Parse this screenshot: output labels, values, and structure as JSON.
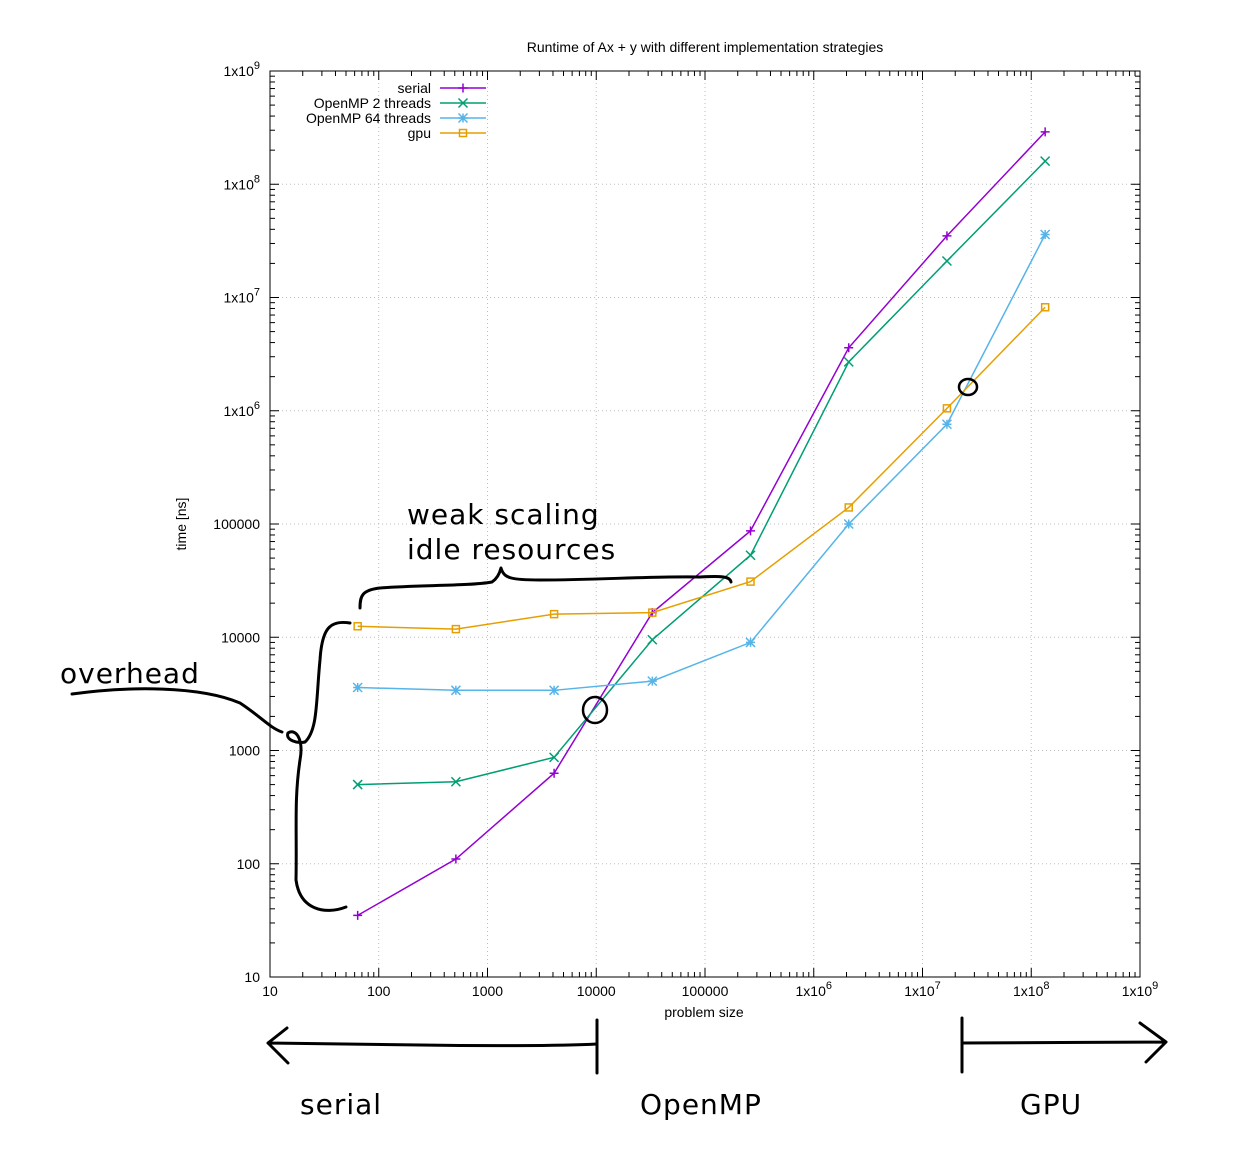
{
  "chart_data": {
    "type": "line",
    "title": "Runtime of Ax + y with different implementation strategies",
    "xlabel": "problem size",
    "ylabel": "time [ns]",
    "xscale": "log",
    "yscale": "log",
    "xlim": [
      10,
      1000000000
    ],
    "ylim": [
      10,
      1000000000
    ],
    "grid": true,
    "legend_position": "top-left",
    "x_ticks": [
      "10",
      "100",
      "1000",
      "10000",
      "100000",
      "1x10^6",
      "1x10^7",
      "1x10^8",
      "1x10^9"
    ],
    "y_ticks": [
      "10",
      "100",
      "1000",
      "10000",
      "100000",
      "1x10^6",
      "1x10^7",
      "1x10^8",
      "1x10^9"
    ],
    "x": [
      64,
      512,
      4096,
      32768,
      262144,
      2097152,
      16777216,
      134217728
    ],
    "series": [
      {
        "name": "serial",
        "color": "#9400d3",
        "marker": "plus",
        "values": [
          35,
          110,
          630,
          16500,
          87000,
          3600000,
          35000000,
          290000000
        ]
      },
      {
        "name": "OpenMP 2 threads",
        "color": "#009e73",
        "marker": "cross",
        "values": [
          500,
          530,
          870,
          9500,
          53000,
          2700000,
          21000000,
          160000000
        ]
      },
      {
        "name": "OpenMP 64 threads",
        "color": "#56b4e9",
        "marker": "star",
        "values": [
          3600,
          3400,
          3400,
          4100,
          9000,
          100000,
          760000,
          36000000
        ]
      },
      {
        "name": "gpu",
        "color": "#e69f00",
        "marker": "square",
        "values": [
          12500,
          11800,
          16000,
          16500,
          31000,
          140000,
          1050000,
          8200000
        ]
      }
    ],
    "annotations": {
      "overhead": "overhead",
      "scaling_line1": "weak scaling",
      "scaling_line2": "idle resources",
      "region_serial": "serial",
      "region_openmp": "OpenMP",
      "region_gpu": "GPU"
    }
  }
}
